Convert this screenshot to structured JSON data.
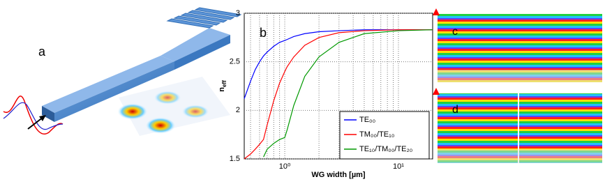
{
  "panels": {
    "a": {
      "label": "a"
    },
    "c": {
      "label": "c"
    },
    "d": {
      "label": "d"
    }
  },
  "chart_data": {
    "type": "line",
    "annotation": "b",
    "x_label": "WG width [µm]",
    "y_label": {
      "text": "n",
      "subscript": "eff"
    },
    "log_x": true,
    "grid": true,
    "legend": "lower right",
    "xlim": [
      0.44,
      20
    ],
    "ylim": [
      1.5,
      3
    ],
    "xticks": [
      {
        "value": 1,
        "label": "10⁰"
      },
      {
        "value": 10,
        "label": "10¹"
      }
    ],
    "x_minor_ticks": [
      0.5,
      0.6,
      0.7,
      0.8,
      0.9,
      2,
      3,
      4,
      5,
      6,
      7,
      8,
      9
    ],
    "yticks": [
      1.5,
      2,
      2.5,
      3
    ],
    "x": [
      0.44,
      0.5,
      0.55,
      0.6,
      0.65,
      0.7,
      0.8,
      0.9,
      1,
      1.05,
      1.2,
      1.5,
      2,
      3,
      5,
      10,
      20
    ],
    "series": [
      {
        "name": "TE₀₀",
        "color": "#0000ff",
        "values": [
          2.12,
          2.3,
          2.42,
          2.5,
          2.56,
          2.6,
          2.66,
          2.7,
          2.72,
          2.73,
          2.76,
          2.79,
          2.81,
          2.82,
          2.83,
          2.83,
          2.83
        ]
      },
      {
        "name": "TM₀₀/TE₁₀",
        "color": "#ff0000",
        "values": [
          1.5,
          1.55,
          1.6,
          1.65,
          1.7,
          1.85,
          2.1,
          2.28,
          2.4,
          2.45,
          2.55,
          2.67,
          2.75,
          2.8,
          2.82,
          2.83,
          2.83
        ]
      },
      {
        "name": "TE₁₀/TM₀₀/TE₂₀",
        "color": "#009900",
        "values": [
          null,
          null,
          null,
          null,
          1.52,
          1.6,
          1.66,
          1.7,
          1.72,
          1.8,
          2.05,
          2.35,
          2.55,
          2.7,
          2.79,
          2.82,
          2.83
        ]
      }
    ]
  }
}
